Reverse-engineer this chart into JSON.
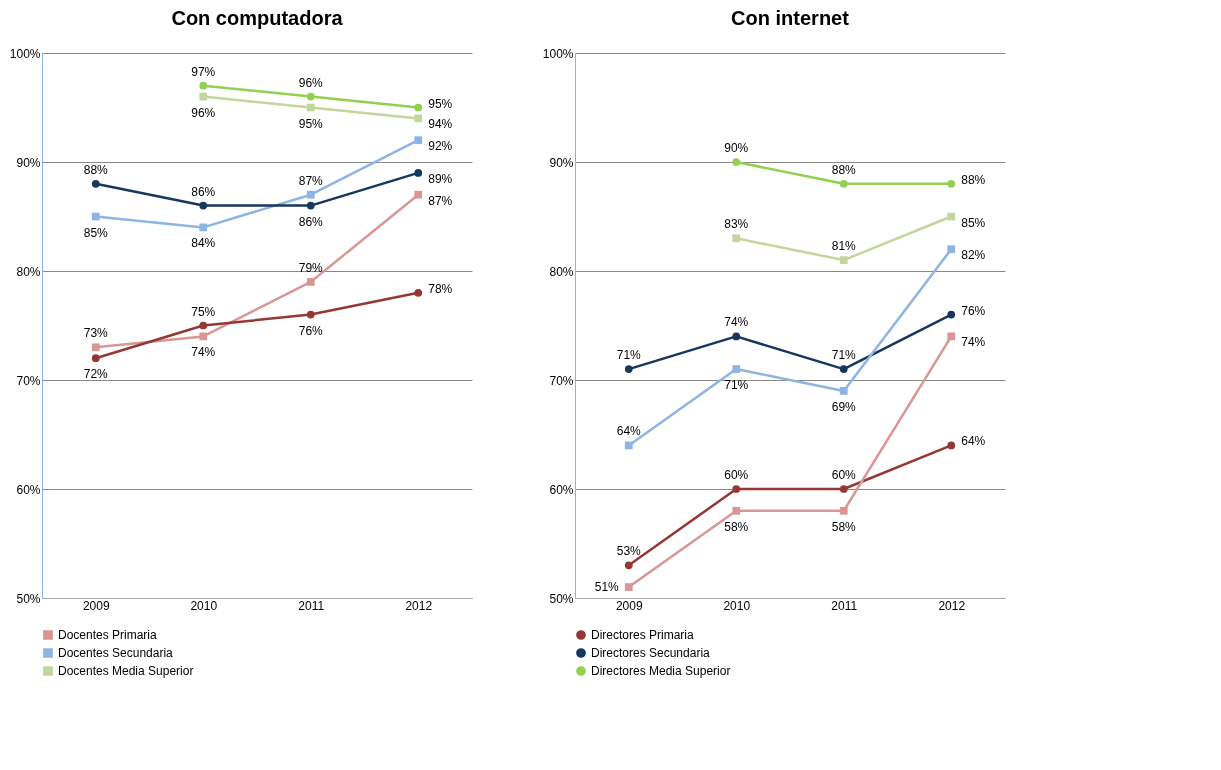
{
  "chart_data": [
    {
      "type": "line",
      "title": "Con computadora",
      "categories": [
        "2009",
        "2010",
        "2011",
        "2012"
      ],
      "ylim": [
        50,
        100
      ],
      "yticks": [
        {
          "value": 50,
          "label": "50%"
        },
        {
          "value": 60,
          "label": "60%"
        },
        {
          "value": 70,
          "label": "70%"
        },
        {
          "value": 80,
          "label": "80%"
        },
        {
          "value": 90,
          "label": "90%"
        },
        {
          "value": 100,
          "label": "100%"
        }
      ],
      "grid": "y",
      "legend": "bottom",
      "series": [
        {
          "name": "Docentes Primaria",
          "color": "#d99694",
          "marker": "square",
          "values": [
            73,
            74,
            79,
            87
          ],
          "value_labels": [
            "73%",
            "74%",
            "79%",
            "87%"
          ]
        },
        {
          "name": "Docentes Secundaria",
          "color": "#8eb4e3",
          "marker": "square",
          "values": [
            85,
            84,
            87,
            92
          ],
          "value_labels": [
            "85%",
            "84%",
            "87%",
            "92%"
          ]
        },
        {
          "name": "Docentes Media Superior",
          "color": "#c3d69b",
          "marker": "square",
          "values": [
            null,
            96,
            95,
            94
          ],
          "value_labels": [
            null,
            "96%",
            "95%",
            "94%"
          ]
        },
        {
          "color": "#953735",
          "marker": "circle",
          "values": [
            72,
            75,
            76,
            78
          ],
          "value_labels": [
            "72%",
            "75%",
            "76%",
            "78%"
          ]
        },
        {
          "color": "#17375e",
          "marker": "circle",
          "values": [
            88,
            86,
            86,
            89
          ],
          "value_labels": [
            "88%",
            "86%",
            "86%",
            "89%"
          ]
        },
        {
          "color": "#92d050",
          "marker": "circle",
          "values": [
            null,
            97,
            96,
            95
          ],
          "value_labels": [
            null,
            "97%",
            "96%",
            "95%"
          ]
        }
      ]
    },
    {
      "type": "line",
      "title": "Con internet",
      "categories": [
        "2009",
        "2010",
        "2011",
        "2012"
      ],
      "ylim": [
        50,
        100
      ],
      "yticks": [
        {
          "value": 50,
          "label": "50%"
        },
        {
          "value": 60,
          "label": "60%"
        },
        {
          "value": 70,
          "label": "70%"
        },
        {
          "value": 80,
          "label": "80%"
        },
        {
          "value": 90,
          "label": "90%"
        },
        {
          "value": 100,
          "label": "100%"
        }
      ],
      "grid": "y",
      "legend": "bottom",
      "series": [
        {
          "name": "Directores Primaria",
          "color": "#953735",
          "marker": "circle",
          "values": [
            53,
            60,
            60,
            64
          ],
          "value_labels": [
            "53%",
            "60%",
            "60%",
            "64%"
          ]
        },
        {
          "name": "Directores Secundaria",
          "color": "#17375e",
          "marker": "circle",
          "values": [
            71,
            74,
            71,
            76
          ],
          "value_labels": [
            "71%",
            "74%",
            "71%",
            "76%"
          ]
        },
        {
          "name": "Directores Media Superior",
          "color": "#92d050",
          "marker": "circle",
          "values": [
            null,
            90,
            88,
            88
          ],
          "value_labels": [
            null,
            "90%",
            "88%",
            "88%"
          ]
        },
        {
          "color": "#d99694",
          "marker": "square",
          "values": [
            51,
            58,
            58,
            74
          ],
          "value_labels": [
            "51%",
            "58%",
            "58%",
            "74%"
          ]
        },
        {
          "color": "#8eb4e3",
          "marker": "square",
          "values": [
            64,
            71,
            69,
            82
          ],
          "value_labels": [
            "64%",
            "71%",
            "69%",
            "82%"
          ]
        },
        {
          "color": "#c3d69b",
          "marker": "square",
          "values": [
            null,
            83,
            81,
            85
          ],
          "value_labels": [
            null,
            "83%",
            "81%",
            "85%"
          ]
        }
      ]
    }
  ]
}
